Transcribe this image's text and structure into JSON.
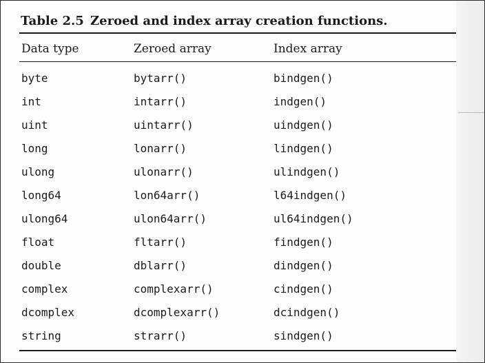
{
  "table": {
    "label": "Table 2.5",
    "title": "Zeroed and index array creation functions.",
    "headers": [
      "Data type",
      "Zeroed array",
      "Index array"
    ],
    "rows": [
      [
        "byte",
        "bytarr()",
        "bindgen()"
      ],
      [
        "int",
        "intarr()",
        "indgen()"
      ],
      [
        "uint",
        "uintarr()",
        "uindgen()"
      ],
      [
        "long",
        "lonarr()",
        "lindgen()"
      ],
      [
        "ulong",
        "ulonarr()",
        "ulindgen()"
      ],
      [
        "long64",
        "lon64arr()",
        "l64indgen()"
      ],
      [
        "ulong64",
        "ulon64arr()",
        "ul64indgen()"
      ],
      [
        "float",
        "fltarr()",
        "findgen()"
      ],
      [
        "double",
        "dblarr()",
        "dindgen()"
      ],
      [
        "complex",
        "complexarr()",
        "cindgen()"
      ],
      [
        "dcomplex",
        "dcomplexarr()",
        "dcindgen()"
      ],
      [
        "string",
        "strarr()",
        "sindgen()"
      ]
    ]
  }
}
